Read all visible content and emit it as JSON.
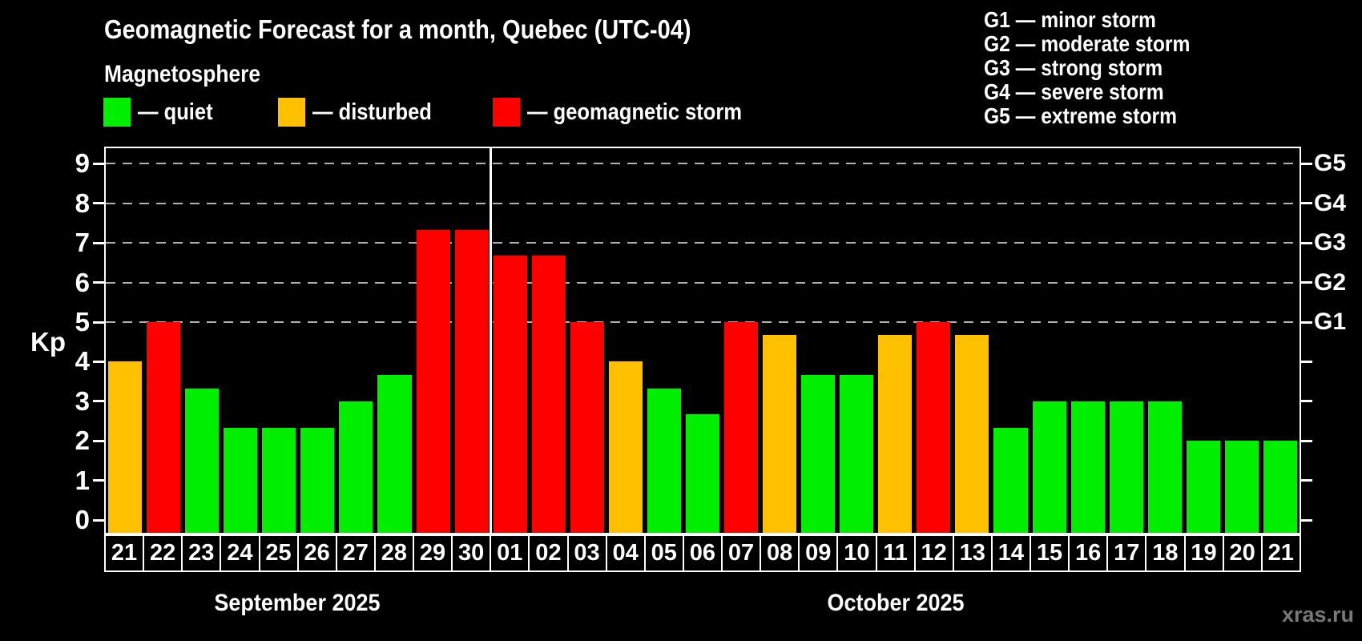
{
  "title": "Geomagnetic Forecast for a month, Quebec (UTC-04)",
  "subtitle": "Magnetosphere",
  "legend": {
    "items": [
      {
        "key": "quiet",
        "label": "— quiet",
        "color": "#00ee00"
      },
      {
        "key": "disturbed",
        "label": "— disturbed",
        "color": "#ffc000"
      },
      {
        "key": "storm",
        "label": "— geomagnetic storm",
        "color": "#ff0000"
      }
    ]
  },
  "g_legend": [
    "G1 — minor storm",
    "G2 — moderate storm",
    "G3 — strong storm",
    "G4 — severe storm",
    "G5 — extreme storm"
  ],
  "y_axis": {
    "label": "Kp",
    "ticks": [
      0,
      1,
      2,
      3,
      4,
      5,
      6,
      7,
      8,
      9
    ]
  },
  "months": [
    {
      "label": "September 2025",
      "days": 10
    },
    {
      "label": "October 2025",
      "days": 21
    }
  ],
  "watermark": "xras.ru",
  "chart_data": {
    "type": "bar",
    "title": "Geomagnetic Forecast for a month, Quebec (UTC-04)",
    "ylabel": "Kp",
    "ylim": [
      -0.32,
      9.39
    ],
    "yticks": [
      0,
      1,
      2,
      3,
      4,
      5,
      6,
      7,
      8,
      9
    ],
    "grid_kp": [
      5,
      6,
      7,
      8,
      9
    ],
    "grid_style": "dashed",
    "legend_position": "top-left",
    "right_labels": [
      {
        "kp": 5,
        "text": "G1"
      },
      {
        "kp": 6,
        "text": "G2"
      },
      {
        "kp": 7,
        "text": "G3"
      },
      {
        "kp": 8,
        "text": "G4"
      },
      {
        "kp": 9,
        "text": "G5"
      }
    ],
    "status_colors": {
      "quiet": "#00ee00",
      "disturbed": "#ffc000",
      "storm": "#ff0000"
    },
    "month_divider_after_index": 9,
    "days": [
      {
        "month": "sep",
        "date": "21",
        "kp": 4.0,
        "status": "disturbed"
      },
      {
        "month": "sep",
        "date": "22",
        "kp": 5.0,
        "status": "storm"
      },
      {
        "month": "sep",
        "date": "23",
        "kp": 3.33,
        "status": "quiet"
      },
      {
        "month": "sep",
        "date": "24",
        "kp": 2.33,
        "status": "quiet"
      },
      {
        "month": "sep",
        "date": "25",
        "kp": 2.33,
        "status": "quiet"
      },
      {
        "month": "sep",
        "date": "26",
        "kp": 2.33,
        "status": "quiet"
      },
      {
        "month": "sep",
        "date": "27",
        "kp": 3.0,
        "status": "quiet"
      },
      {
        "month": "sep",
        "date": "28",
        "kp": 3.67,
        "status": "quiet"
      },
      {
        "month": "sep",
        "date": "29",
        "kp": 7.33,
        "status": "storm"
      },
      {
        "month": "sep",
        "date": "30",
        "kp": 7.33,
        "status": "storm"
      },
      {
        "month": "oct",
        "date": "01",
        "kp": 6.67,
        "status": "storm"
      },
      {
        "month": "oct",
        "date": "02",
        "kp": 6.67,
        "status": "storm"
      },
      {
        "month": "oct",
        "date": "03",
        "kp": 5.0,
        "status": "storm"
      },
      {
        "month": "oct",
        "date": "04",
        "kp": 4.0,
        "status": "disturbed"
      },
      {
        "month": "oct",
        "date": "05",
        "kp": 3.33,
        "status": "quiet"
      },
      {
        "month": "oct",
        "date": "06",
        "kp": 2.67,
        "status": "quiet"
      },
      {
        "month": "oct",
        "date": "07",
        "kp": 5.0,
        "status": "storm"
      },
      {
        "month": "oct",
        "date": "08",
        "kp": 4.67,
        "status": "disturbed"
      },
      {
        "month": "oct",
        "date": "09",
        "kp": 3.67,
        "status": "quiet"
      },
      {
        "month": "oct",
        "date": "10",
        "kp": 3.67,
        "status": "quiet"
      },
      {
        "month": "oct",
        "date": "11",
        "kp": 4.67,
        "status": "disturbed"
      },
      {
        "month": "oct",
        "date": "12",
        "kp": 5.0,
        "status": "storm"
      },
      {
        "month": "oct",
        "date": "13",
        "kp": 4.67,
        "status": "disturbed"
      },
      {
        "month": "oct",
        "date": "14",
        "kp": 2.33,
        "status": "quiet"
      },
      {
        "month": "oct",
        "date": "15",
        "kp": 3.0,
        "status": "quiet"
      },
      {
        "month": "oct",
        "date": "16",
        "kp": 3.0,
        "status": "quiet"
      },
      {
        "month": "oct",
        "date": "17",
        "kp": 3.0,
        "status": "quiet"
      },
      {
        "month": "oct",
        "date": "18",
        "kp": 3.0,
        "status": "quiet"
      },
      {
        "month": "oct",
        "date": "19",
        "kp": 2.0,
        "status": "quiet"
      },
      {
        "month": "oct",
        "date": "20",
        "kp": 2.0,
        "status": "quiet"
      },
      {
        "month": "oct",
        "date": "21",
        "kp": 2.0,
        "status": "quiet"
      }
    ]
  }
}
